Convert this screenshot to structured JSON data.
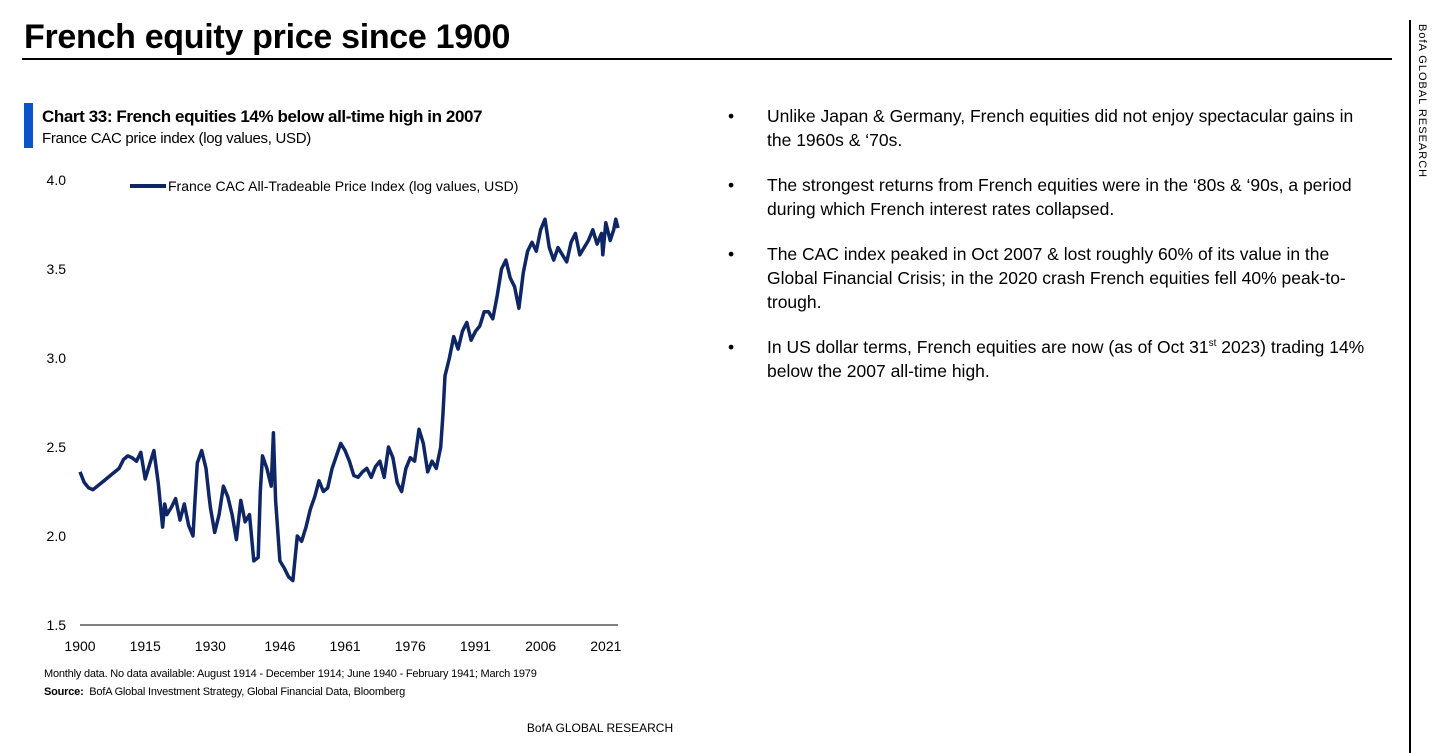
{
  "header": {
    "title": "French equity price since 1900"
  },
  "brand": {
    "side_label": "BofA GLOBAL RESEARCH",
    "footer": "BofA GLOBAL RESEARCH",
    "accent_color": "#0a54c9",
    "line_color": "#0f2666"
  },
  "chart": {
    "heading": "Chart 33: French equities 14% below all-time high in 2007",
    "subheading": "France CAC price index (log values, USD)",
    "note": "Monthly data. No data available: August 1914 - December 1914;  June 1940  - February 1941;  March 1979",
    "source_label": "Source:",
    "source_text": "BofA Global Investment Strategy, Global Financial Data, Bloomberg"
  },
  "chart_data": {
    "type": "line",
    "title": "Chart 33: French equities 14% below all-time high in 2007",
    "subtitle": "France CAC price index (log values, USD)",
    "xlabel": "",
    "ylabel": "",
    "xlim": [
      1900,
      2023.8
    ],
    "ylim": [
      1.5,
      4.0
    ],
    "x_ticks": [
      1900,
      1915,
      1930,
      1946,
      1961,
      1976,
      1991,
      2006,
      2021
    ],
    "y_ticks": [
      "1.5",
      "2.0",
      "2.5",
      "3.0",
      "3.5",
      "4.0"
    ],
    "grid": false,
    "legend_position": "top-left",
    "series": [
      {
        "name": "France CAC All-Tradeable Price Index (log values, USD)",
        "x": [
          1900,
          1901,
          1902,
          1903,
          1905,
          1907,
          1909,
          1910,
          1911,
          1912,
          1913,
          1914,
          1915,
          1916,
          1917,
          1918,
          1919,
          1919.5,
          1920,
          1921,
          1922,
          1923,
          1924,
          1925,
          1926,
          1926.5,
          1927,
          1928,
          1929,
          1929.7,
          1930,
          1931,
          1932,
          1933,
          1934,
          1935,
          1936,
          1937,
          1938,
          1939,
          1940,
          1941,
          1941.5,
          1942,
          1943,
          1944,
          1944.5,
          1945,
          1946,
          1947,
          1948,
          1949,
          1950,
          1951,
          1952,
          1953,
          1954,
          1955,
          1956,
          1957,
          1958,
          1959,
          1960,
          1961,
          1962,
          1963,
          1964,
          1965,
          1966,
          1967,
          1968,
          1969,
          1970,
          1971,
          1972,
          1973,
          1974,
          1975,
          1976,
          1977,
          1978,
          1979,
          1980,
          1981,
          1982,
          1983,
          1983.5,
          1984,
          1985,
          1986,
          1987,
          1988,
          1989,
          1990,
          1991,
          1992,
          1993,
          1994,
          1995,
          1996,
          1997,
          1998,
          1999,
          2000,
          2001,
          2002,
          2003,
          2004,
          2005,
          2006,
          2007,
          2008,
          2009,
          2010,
          2011,
          2012,
          2013,
          2014,
          2015,
          2016,
          2017,
          2018,
          2019,
          2020,
          2020.3,
          2021,
          2022,
          2022.8,
          2023.3,
          2023.8
        ],
        "values": [
          2.36,
          2.3,
          2.27,
          2.26,
          2.3,
          2.34,
          2.38,
          2.43,
          2.45,
          2.44,
          2.42,
          2.47,
          2.32,
          2.4,
          2.48,
          2.3,
          2.05,
          2.18,
          2.12,
          2.16,
          2.21,
          2.09,
          2.18,
          2.06,
          2.0,
          2.22,
          2.41,
          2.48,
          2.38,
          2.22,
          2.16,
          2.02,
          2.12,
          2.28,
          2.22,
          2.12,
          1.98,
          2.2,
          2.08,
          2.12,
          1.86,
          1.88,
          2.25,
          2.45,
          2.38,
          2.28,
          2.58,
          2.2,
          1.86,
          1.82,
          1.77,
          1.75,
          2.0,
          1.97,
          2.05,
          2.15,
          2.22,
          2.31,
          2.25,
          2.27,
          2.38,
          2.45,
          2.52,
          2.48,
          2.42,
          2.34,
          2.33,
          2.36,
          2.38,
          2.33,
          2.39,
          2.42,
          2.33,
          2.5,
          2.44,
          2.3,
          2.25,
          2.38,
          2.44,
          2.42,
          2.6,
          2.52,
          2.36,
          2.42,
          2.38,
          2.5,
          2.68,
          2.9,
          3.0,
          3.12,
          3.05,
          3.15,
          3.2,
          3.1,
          3.15,
          3.18,
          3.26,
          3.26,
          3.22,
          3.35,
          3.5,
          3.55,
          3.45,
          3.4,
          3.28,
          3.48,
          3.6,
          3.65,
          3.6,
          3.72,
          3.78,
          3.62,
          3.55,
          3.62,
          3.58,
          3.54,
          3.65,
          3.7,
          3.58,
          3.62,
          3.66,
          3.72,
          3.64,
          3.7,
          3.58,
          3.76,
          3.66,
          3.72,
          3.78,
          3.73
        ]
      }
    ]
  },
  "bullets": [
    {
      "marker": "•",
      "text": "Unlike Japan & Germany, French equities did not enjoy spectacular gains in the 1960s & ‘70s."
    },
    {
      "marker": "•",
      "text": "The strongest returns from French equities were in the ‘80s & ‘90s, a period during which French interest rates collapsed."
    },
    {
      "marker": "•",
      "text": "The CAC index peaked in Oct 2007 & lost roughly 60% of its value in the Global Financial Crisis; in the 2020 crash French equities fell 40% peak-to-trough."
    },
    {
      "marker": "•",
      "text_before": "In US dollar terms, French equities are now (as of Oct 31",
      "text_sup": "st",
      "text_after": " 2023) trading 14% below the 2007 all-time high."
    }
  ]
}
